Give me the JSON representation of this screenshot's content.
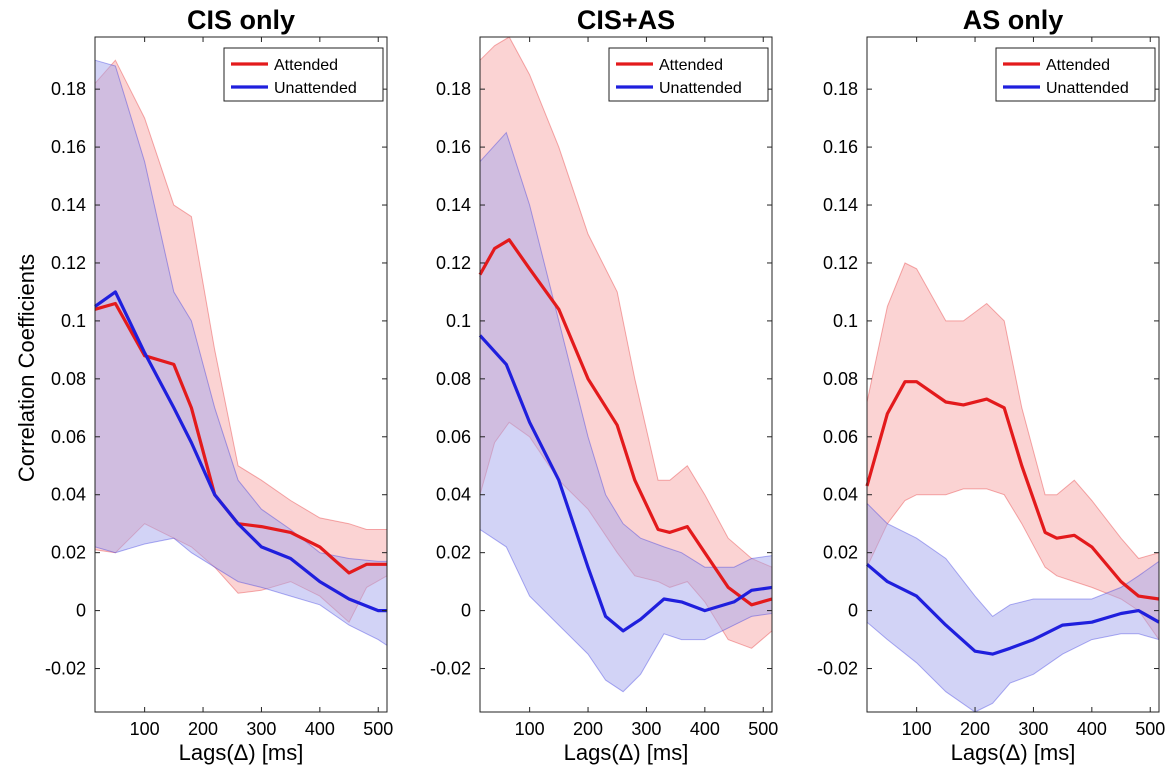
{
  "figure": {
    "ylabel": "Correlation Coefficients"
  },
  "chart_data": [
    {
      "type": "line",
      "title": "CIS only",
      "xlabel": "Lags(Δ) [ms]",
      "ylabel": "Correlation Coefficients",
      "xlim": [
        15,
        515
      ],
      "ylim": [
        -0.035,
        0.198
      ],
      "xticks": [
        100,
        200,
        300,
        400,
        500
      ],
      "xtick_labels": [
        "100",
        "200",
        "300",
        "400",
        "500"
      ],
      "yticks": [
        -0.02,
        0,
        0.02,
        0.04,
        0.06,
        0.08,
        0.1,
        0.12,
        0.14,
        0.16,
        0.18
      ],
      "ytick_labels": [
        "-0.02",
        "0",
        "0.02",
        "0.04",
        "0.06",
        "0.08",
        "0.1",
        "0.12",
        "0.14",
        "0.16",
        "0.18"
      ],
      "legend": {
        "position": "top-right",
        "entries": [
          "Attended",
          "Unattended"
        ]
      },
      "series": [
        {
          "name": "Attended",
          "color": "#e31a1c",
          "band_color": "#f7a8a8",
          "x": [
            15,
            50,
            100,
            150,
            180,
            220,
            260,
            300,
            350,
            400,
            450,
            480,
            515
          ],
          "y": [
            0.104,
            0.106,
            0.088,
            0.085,
            0.07,
            0.04,
            0.03,
            0.029,
            0.027,
            0.022,
            0.013,
            0.016,
            0.016
          ],
          "upper": [
            0.182,
            0.19,
            0.17,
            0.14,
            0.136,
            0.09,
            0.05,
            0.045,
            0.038,
            0.032,
            0.03,
            0.028,
            0.028
          ],
          "lower": [
            0.021,
            0.02,
            0.03,
            0.025,
            0.022,
            0.015,
            0.006,
            0.007,
            0.01,
            0.005,
            -0.004,
            0.008,
            0.012
          ]
        },
        {
          "name": "Unattended",
          "color": "#1f1fdd",
          "band_color": "#a6a8ee",
          "x": [
            15,
            50,
            100,
            150,
            180,
            220,
            260,
            300,
            350,
            400,
            450,
            500,
            515
          ],
          "y": [
            0.105,
            0.11,
            0.089,
            0.07,
            0.058,
            0.04,
            0.03,
            0.022,
            0.018,
            0.01,
            0.004,
            0.0,
            0.0
          ],
          "upper": [
            0.19,
            0.188,
            0.155,
            0.11,
            0.1,
            0.07,
            0.045,
            0.035,
            0.028,
            0.02,
            0.018,
            0.017,
            0.017
          ],
          "lower": [
            0.022,
            0.02,
            0.023,
            0.025,
            0.02,
            0.015,
            0.01,
            0.008,
            0.005,
            0.002,
            -0.005,
            -0.01,
            -0.012
          ]
        }
      ]
    },
    {
      "type": "line",
      "title": "CIS+AS",
      "xlabel": "Lags(Δ) [ms]",
      "ylabel": "",
      "xlim": [
        15,
        515
      ],
      "ylim": [
        -0.035,
        0.198
      ],
      "xticks": [
        100,
        200,
        300,
        400,
        500
      ],
      "xtick_labels": [
        "100",
        "200",
        "300",
        "400",
        "500"
      ],
      "yticks": [
        -0.02,
        0,
        0.02,
        0.04,
        0.06,
        0.08,
        0.1,
        0.12,
        0.14,
        0.16,
        0.18
      ],
      "ytick_labels": [
        "-0.02",
        "0",
        "0.02",
        "0.04",
        "0.06",
        "0.08",
        "0.1",
        "0.12",
        "0.14",
        "0.16",
        "0.18"
      ],
      "legend": {
        "position": "top-right",
        "entries": [
          "Attended",
          "Unattended"
        ]
      },
      "series": [
        {
          "name": "Attended",
          "color": "#e31a1c",
          "band_color": "#f7a8a8",
          "x": [
            15,
            40,
            65,
            100,
            150,
            200,
            250,
            280,
            320,
            340,
            370,
            400,
            440,
            480,
            515
          ],
          "y": [
            0.116,
            0.125,
            0.128,
            0.118,
            0.104,
            0.08,
            0.064,
            0.045,
            0.028,
            0.027,
            0.029,
            0.02,
            0.008,
            0.002,
            0.004
          ],
          "upper": [
            0.19,
            0.195,
            0.198,
            0.185,
            0.16,
            0.13,
            0.11,
            0.08,
            0.045,
            0.045,
            0.05,
            0.04,
            0.025,
            0.018,
            0.015
          ],
          "lower": [
            0.04,
            0.058,
            0.065,
            0.06,
            0.045,
            0.035,
            0.02,
            0.012,
            0.01,
            0.008,
            0.01,
            0.003,
            -0.01,
            -0.013,
            -0.007
          ]
        },
        {
          "name": "Unattended",
          "color": "#1f1fdd",
          "band_color": "#a6a8ee",
          "x": [
            15,
            60,
            100,
            150,
            200,
            230,
            260,
            290,
            330,
            360,
            400,
            450,
            480,
            515
          ],
          "y": [
            0.095,
            0.085,
            0.065,
            0.045,
            0.015,
            -0.002,
            -0.007,
            -0.003,
            0.004,
            0.003,
            0.0,
            0.003,
            0.007,
            0.008
          ],
          "upper": [
            0.155,
            0.165,
            0.14,
            0.1,
            0.06,
            0.04,
            0.03,
            0.025,
            0.022,
            0.02,
            0.015,
            0.015,
            0.018,
            0.019
          ],
          "lower": [
            0.028,
            0.022,
            0.005,
            -0.005,
            -0.015,
            -0.024,
            -0.028,
            -0.022,
            -0.008,
            -0.01,
            -0.01,
            -0.005,
            -0.002,
            -0.001
          ]
        }
      ]
    },
    {
      "type": "line",
      "title": "AS only",
      "xlabel": "Lags(Δ) [ms]",
      "ylabel": "",
      "xlim": [
        15,
        515
      ],
      "ylim": [
        -0.035,
        0.198
      ],
      "xticks": [
        100,
        200,
        300,
        400,
        500
      ],
      "xtick_labels": [
        "100",
        "200",
        "300",
        "400",
        "500"
      ],
      "yticks": [
        -0.02,
        0,
        0.02,
        0.04,
        0.06,
        0.08,
        0.1,
        0.12,
        0.14,
        0.16,
        0.18
      ],
      "ytick_labels": [
        "-0.02",
        "0",
        "0.02",
        "0.04",
        "0.06",
        "0.08",
        "0.1",
        "0.12",
        "0.14",
        "0.16",
        "0.18"
      ],
      "legend": {
        "position": "top-right",
        "entries": [
          "Attended",
          "Unattended"
        ]
      },
      "series": [
        {
          "name": "Attended",
          "color": "#e31a1c",
          "band_color": "#f7a8a8",
          "x": [
            15,
            50,
            80,
            100,
            150,
            180,
            220,
            250,
            280,
            320,
            340,
            370,
            400,
            450,
            480,
            515
          ],
          "y": [
            0.043,
            0.068,
            0.079,
            0.079,
            0.072,
            0.071,
            0.073,
            0.07,
            0.05,
            0.027,
            0.025,
            0.026,
            0.022,
            0.01,
            0.005,
            0.004
          ],
          "upper": [
            0.072,
            0.105,
            0.12,
            0.118,
            0.1,
            0.1,
            0.106,
            0.1,
            0.07,
            0.04,
            0.04,
            0.045,
            0.038,
            0.025,
            0.018,
            0.02
          ],
          "lower": [
            0.015,
            0.03,
            0.038,
            0.04,
            0.04,
            0.042,
            0.042,
            0.04,
            0.03,
            0.015,
            0.012,
            0.01,
            0.008,
            0.004,
            0.0,
            -0.01
          ]
        },
        {
          "name": "Unattended",
          "color": "#1f1fdd",
          "band_color": "#a6a8ee",
          "x": [
            15,
            50,
            100,
            150,
            200,
            230,
            260,
            300,
            350,
            400,
            450,
            480,
            515
          ],
          "y": [
            0.016,
            0.01,
            0.005,
            -0.005,
            -0.014,
            -0.015,
            -0.013,
            -0.01,
            -0.005,
            -0.004,
            -0.001,
            0.0,
            -0.004
          ],
          "upper": [
            0.037,
            0.03,
            0.025,
            0.018,
            0.005,
            -0.002,
            0.002,
            0.004,
            0.004,
            0.004,
            0.008,
            0.012,
            0.017
          ],
          "lower": [
            -0.004,
            -0.01,
            -0.018,
            -0.028,
            -0.035,
            -0.032,
            -0.025,
            -0.022,
            -0.015,
            -0.01,
            -0.008,
            -0.008,
            -0.01
          ]
        }
      ]
    }
  ]
}
